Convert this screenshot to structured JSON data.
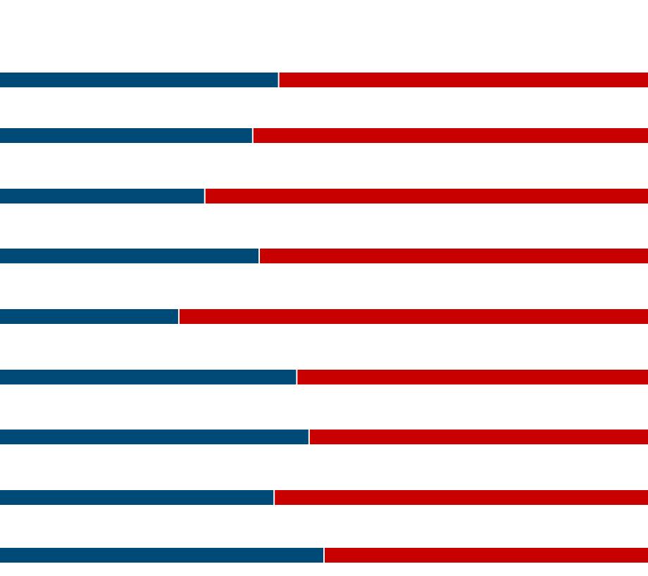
{
  "chart_data": {
    "type": "bar",
    "orientation": "horizontal",
    "stacked": true,
    "normalized": true,
    "grid": false,
    "legend": "none",
    "xlim": [
      0,
      100
    ],
    "title": "",
    "xlabel": "",
    "ylabel": "",
    "categories": [
      "",
      "",
      "",
      "",
      "",
      "",
      "",
      "",
      ""
    ],
    "series": [
      {
        "color": "#004a78",
        "values": [
          43.0,
          39.0,
          31.6,
          40.0,
          27.6,
          45.8,
          47.7,
          42.3,
          50.0
        ]
      },
      {
        "color": "#c80000",
        "values": [
          57.0,
          61.0,
          68.4,
          60.0,
          72.4,
          54.2,
          52.3,
          57.7,
          50.0
        ]
      }
    ]
  }
}
